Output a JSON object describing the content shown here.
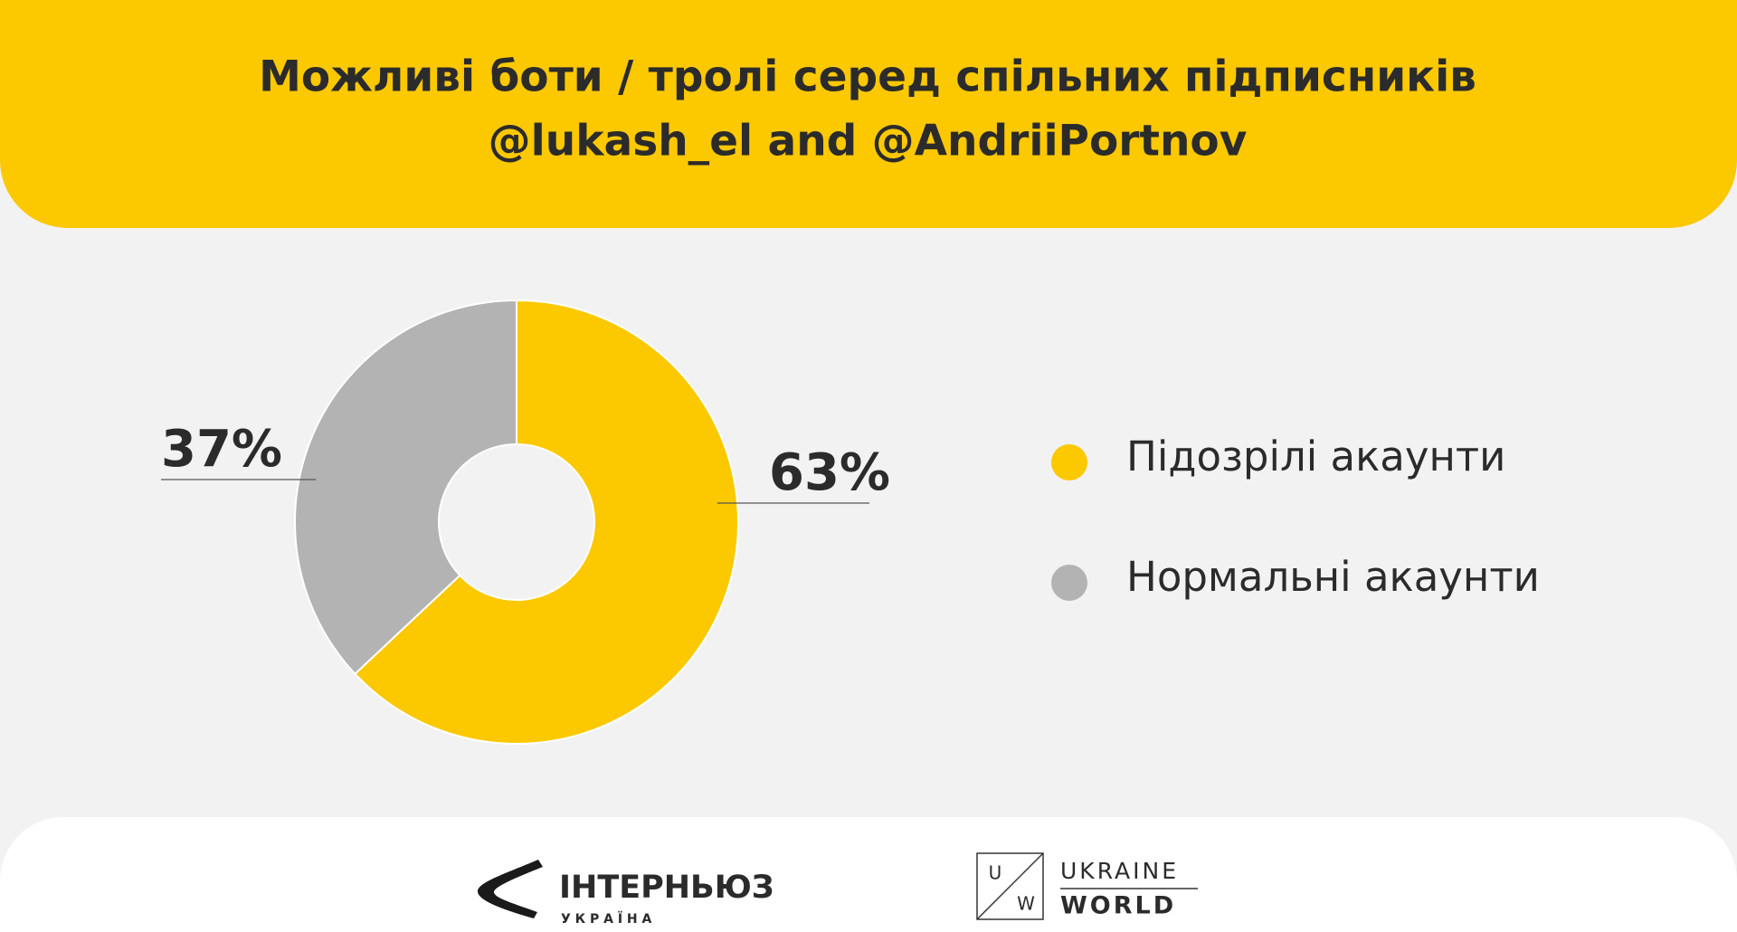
{
  "chart_data": {
    "type": "pie",
    "title": [
      "Можливі боти / тролі серед спільних підписників",
      "@lukash_el and @AndriiPortnov"
    ],
    "categories": [
      "Підозрілі акаунти",
      "Нормальні акаунти"
    ],
    "values": [
      63,
      37
    ],
    "value_labels": [
      "63%",
      "37%"
    ],
    "colors": [
      "#fcc800",
      "#b2b3b2"
    ],
    "donut": true
  },
  "footer": {
    "internews": {
      "name": "ІНТЕРНЬЮЗ",
      "sub": "У К Р А Ї Н А"
    },
    "ukraine_world": {
      "u": "U",
      "w": "W",
      "line1": "UKRAINE",
      "line2": "WORLD"
    }
  }
}
